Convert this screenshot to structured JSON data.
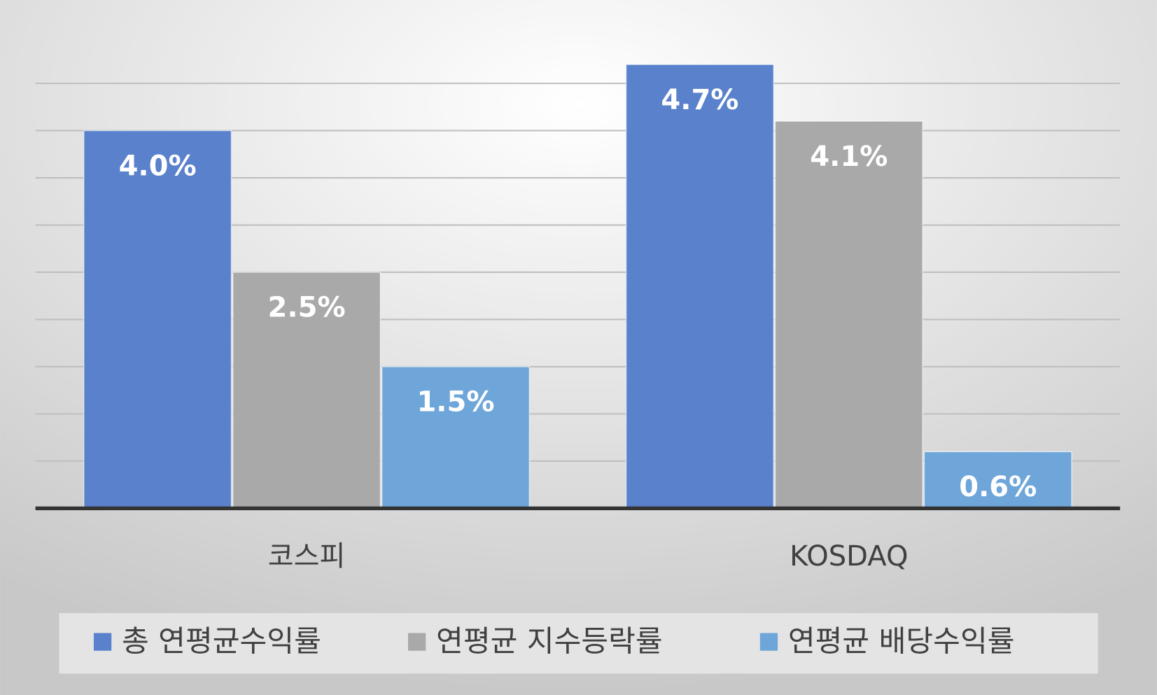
{
  "chart_data": {
    "type": "bar",
    "categories": [
      "코스피",
      "KOSDAQ"
    ],
    "series": [
      {
        "name": "총 연평균수익률",
        "color": "#5a81cb",
        "values": [
          4.0,
          4.7
        ],
        "value_labels": [
          "4.0%",
          "4.7%"
        ]
      },
      {
        "name": "연평균 지수등락률",
        "color": "#a9a9a9",
        "values": [
          2.5,
          4.1
        ],
        "value_labels": [
          "2.5%",
          "4.1%"
        ]
      },
      {
        "name": "연평균 배당수익률",
        "color": "#6fa6da",
        "values": [
          1.5,
          0.6
        ],
        "value_labels": [
          "1.5%",
          "0.6%"
        ]
      }
    ],
    "ylim": [
      0,
      5
    ],
    "yticks": [
      0,
      0.5,
      1,
      1.5,
      2,
      2.5,
      3,
      3.5,
      4,
      4.5
    ],
    "grid": true,
    "legend": "bottom"
  }
}
